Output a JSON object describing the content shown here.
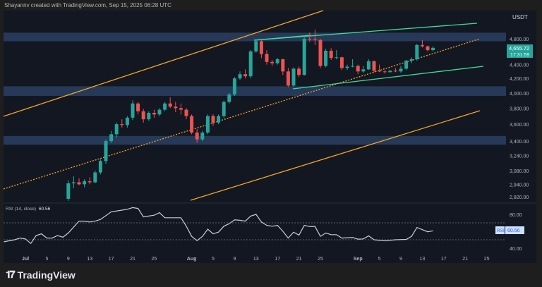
{
  "attribution": "Shayannv created with TradingView.com, Sep 15, 2025 06:28 UTC",
  "footer": {
    "brand": "TradingView",
    "logo": "TV"
  },
  "colors": {
    "up": "#26a69a",
    "down": "#ef5350",
    "zone": "#2a3f63",
    "channel": "#f5a623",
    "wedge": "#3ddc97",
    "rsi": "#c8ccd6",
    "bg": "#131722"
  },
  "chart_data": {
    "type": "candlestick",
    "currency": "USDT",
    "price_scale": "log",
    "last_price": "4,655.72",
    "countdown": "17:31:59",
    "y_ticks": [
      "4,800.00",
      "4,400.00",
      "4,200.00",
      "4,000.00",
      "3,800.00",
      "3,600.00",
      "3,400.00",
      "3,240.00",
      "3,080.00",
      "2,940.00",
      "2,820.00"
    ],
    "y_tick_values": [
      4800,
      4400,
      4200,
      4000,
      3800,
      3600,
      3400,
      3240,
      3080,
      2940,
      2820
    ],
    "zones": [
      [
        4760,
        4900
      ],
      [
        3960,
        4090
      ],
      [
        3360,
        3460
      ]
    ],
    "x_ticks": [
      {
        "label": "Jul",
        "date": "07-01"
      },
      {
        "label": "5",
        "date": "07-05"
      },
      {
        "label": "9",
        "date": "07-09"
      },
      {
        "label": "13",
        "date": "07-13"
      },
      {
        "label": "17",
        "date": "07-17"
      },
      {
        "label": "21",
        "date": "07-21"
      },
      {
        "label": "25",
        "date": "07-25"
      },
      {
        "label": "Aug",
        "date": "08-01"
      },
      {
        "label": "5",
        "date": "08-05"
      },
      {
        "label": "9",
        "date": "08-09"
      },
      {
        "label": "13",
        "date": "08-13"
      },
      {
        "label": "17",
        "date": "08-17"
      },
      {
        "label": "21",
        "date": "08-21"
      },
      {
        "label": "25",
        "date": "08-25"
      },
      {
        "label": "Sep",
        "date": "09-01"
      },
      {
        "label": "5",
        "date": "09-05"
      },
      {
        "label": "9",
        "date": "09-09"
      },
      {
        "label": "13",
        "date": "09-13"
      },
      {
        "label": "17",
        "date": "09-17"
      },
      {
        "label": "21",
        "date": "09-21"
      },
      {
        "label": "25",
        "date": "09-25"
      }
    ],
    "candles": [
      [
        "07-09",
        2800,
        2980,
        2780,
        2950
      ],
      [
        "07-10",
        2950,
        3020,
        2900,
        2960
      ],
      [
        "07-11",
        2960,
        3000,
        2930,
        2940
      ],
      [
        "07-12",
        2940,
        2990,
        2910,
        2970
      ],
      [
        "07-13",
        2970,
        3010,
        2940,
        2960
      ],
      [
        "07-14",
        2960,
        3080,
        2950,
        3060
      ],
      [
        "07-15",
        3060,
        3200,
        3040,
        3180
      ],
      [
        "07-16",
        3180,
        3420,
        3150,
        3400
      ],
      [
        "07-17",
        3400,
        3520,
        3380,
        3480
      ],
      [
        "07-18",
        3480,
        3620,
        3440,
        3600
      ],
      [
        "07-19",
        3600,
        3660,
        3560,
        3590
      ],
      [
        "07-20",
        3590,
        3700,
        3560,
        3680
      ],
      [
        "07-21",
        3680,
        3900,
        3650,
        3860
      ],
      [
        "07-22",
        3860,
        3880,
        3720,
        3760
      ],
      [
        "07-23",
        3760,
        3790,
        3620,
        3660
      ],
      [
        "07-24",
        3660,
        3760,
        3640,
        3740
      ],
      [
        "07-25",
        3740,
        3780,
        3680,
        3720
      ],
      [
        "07-26",
        3720,
        3800,
        3700,
        3780
      ],
      [
        "07-27",
        3780,
        3880,
        3760,
        3860
      ],
      [
        "07-28",
        3860,
        3940,
        3800,
        3820
      ],
      [
        "07-29",
        3820,
        3880,
        3750,
        3800
      ],
      [
        "07-30",
        3800,
        3860,
        3720,
        3780
      ],
      [
        "07-31",
        3780,
        3800,
        3660,
        3700
      ],
      [
        "08-01",
        3700,
        3720,
        3480,
        3500
      ],
      [
        "08-02",
        3500,
        3540,
        3380,
        3420
      ],
      [
        "08-03",
        3420,
        3520,
        3400,
        3500
      ],
      [
        "08-04",
        3500,
        3720,
        3480,
        3700
      ],
      [
        "08-05",
        3700,
        3720,
        3580,
        3620
      ],
      [
        "08-06",
        3620,
        3720,
        3600,
        3700
      ],
      [
        "08-07",
        3700,
        3900,
        3680,
        3880
      ],
      [
        "08-08",
        3880,
        4000,
        3860,
        3980
      ],
      [
        "08-09",
        3980,
        4220,
        3960,
        4200
      ],
      [
        "08-10",
        4200,
        4300,
        4180,
        4260
      ],
      [
        "08-11",
        4260,
        4330,
        4200,
        4230
      ],
      [
        "08-12",
        4230,
        4620,
        4200,
        4600
      ],
      [
        "08-13",
        4600,
        4780,
        4580,
        4760
      ],
      [
        "08-14",
        4760,
        4780,
        4500,
        4560
      ],
      [
        "08-15",
        4560,
        4620,
        4400,
        4440
      ],
      [
        "08-16",
        4440,
        4470,
        4380,
        4420
      ],
      [
        "08-17",
        4420,
        4500,
        4400,
        4480
      ],
      [
        "08-18",
        4480,
        4490,
        4250,
        4300
      ],
      [
        "08-19",
        4300,
        4350,
        4080,
        4100
      ],
      [
        "08-20",
        4100,
        4360,
        4080,
        4340
      ],
      [
        "08-21",
        4340,
        4370,
        4220,
        4250
      ],
      [
        "08-22",
        4250,
        4850,
        4240,
        4800
      ],
      [
        "08-23",
        4800,
        4900,
        4750,
        4790
      ],
      [
        "08-24",
        4790,
        4950,
        4700,
        4780
      ],
      [
        "08-25",
        4780,
        4800,
        4350,
        4380
      ],
      [
        "08-26",
        4380,
        4640,
        4360,
        4610
      ],
      [
        "08-27",
        4610,
        4650,
        4470,
        4500
      ],
      [
        "08-28",
        4500,
        4620,
        4480,
        4510
      ],
      [
        "08-29",
        4510,
        4520,
        4320,
        4350
      ],
      [
        "08-30",
        4350,
        4400,
        4320,
        4370
      ],
      [
        "08-31",
        4370,
        4480,
        4360,
        4380
      ],
      [
        "09-01",
        4380,
        4400,
        4260,
        4300
      ],
      [
        "09-02",
        4300,
        4380,
        4280,
        4330
      ],
      [
        "09-03",
        4330,
        4480,
        4320,
        4450
      ],
      [
        "09-04",
        4450,
        4460,
        4290,
        4310
      ],
      [
        "09-05",
        4310,
        4400,
        4290,
        4300
      ],
      [
        "09-06",
        4300,
        4320,
        4270,
        4290
      ],
      [
        "09-07",
        4290,
        4320,
        4280,
        4310
      ],
      [
        "09-08",
        4310,
        4350,
        4290,
        4300
      ],
      [
        "09-09",
        4300,
        4380,
        4280,
        4340
      ],
      [
        "09-10",
        4340,
        4470,
        4320,
        4460
      ],
      [
        "09-11",
        4460,
        4510,
        4420,
        4480
      ],
      [
        "09-12",
        4480,
        4720,
        4460,
        4700
      ],
      [
        "09-13",
        4700,
        4780,
        4660,
        4680
      ],
      [
        "09-14",
        4680,
        4690,
        4600,
        4620
      ],
      [
        "09-15",
        4620,
        4680,
        4600,
        4655.72
      ]
    ],
    "rsi": {
      "label": "RSI (14, close)",
      "value": "60.56",
      "badge": "RSI",
      "y_ticks": [
        "80.00",
        "40.00"
      ],
      "y_tick_values": [
        80,
        40
      ],
      "bands": [
        70,
        50
      ],
      "points": [
        [
          "06-27",
          47.6
        ],
        [
          "06-29",
          50
        ],
        [
          "06-30",
          52
        ],
        [
          "07-01",
          51
        ],
        [
          "07-02",
          45.6
        ],
        [
          "07-03",
          55
        ],
        [
          "07-04",
          57
        ],
        [
          "07-05",
          52
        ],
        [
          "07-06",
          52
        ],
        [
          "07-07",
          55
        ],
        [
          "07-08",
          53
        ],
        [
          "07-09",
          58
        ],
        [
          "07-11",
          72
        ],
        [
          "07-12",
          72
        ],
        [
          "07-13",
          71
        ],
        [
          "07-14",
          72
        ],
        [
          "07-15",
          74
        ],
        [
          "07-17",
          83
        ],
        [
          "07-19",
          85
        ],
        [
          "07-20",
          86
        ],
        [
          "07-21",
          88
        ],
        [
          "07-22",
          87
        ],
        [
          "07-23",
          77
        ],
        [
          "07-24",
          78
        ],
        [
          "07-25",
          79
        ],
        [
          "07-26",
          82
        ],
        [
          "07-27",
          76
        ],
        [
          "07-30",
          76
        ],
        [
          "07-31",
          66
        ],
        [
          "08-01",
          54
        ],
        [
          "08-02",
          49
        ],
        [
          "08-03",
          54
        ],
        [
          "08-04",
          62.5
        ],
        [
          "08-05",
          57
        ],
        [
          "08-06",
          59
        ],
        [
          "08-07",
          66
        ],
        [
          "08-08",
          69
        ],
        [
          "08-09",
          73.5
        ],
        [
          "08-10",
          73
        ],
        [
          "08-11",
          72
        ],
        [
          "08-12",
          78
        ],
        [
          "08-13",
          80
        ],
        [
          "08-14",
          71
        ],
        [
          "08-15",
          67
        ],
        [
          "08-16",
          66
        ],
        [
          "08-17",
          67
        ],
        [
          "08-18",
          60
        ],
        [
          "08-19",
          52
        ],
        [
          "08-20",
          59
        ],
        [
          "08-21",
          55.5
        ],
        [
          "08-22",
          67
        ],
        [
          "08-23",
          65.6
        ],
        [
          "08-24",
          65.6
        ],
        [
          "08-25",
          54
        ],
        [
          "08-26",
          58
        ],
        [
          "08-27",
          56
        ],
        [
          "08-28",
          56
        ],
        [
          "08-29",
          52
        ],
        [
          "08-31",
          52.7
        ],
        [
          "09-01",
          50.7
        ],
        [
          "09-02",
          51
        ],
        [
          "09-03",
          54.6
        ],
        [
          "09-04",
          50
        ],
        [
          "09-06",
          48.7
        ],
        [
          "09-08",
          50
        ],
        [
          "09-10",
          50.4
        ],
        [
          "09-11",
          54
        ],
        [
          "09-12",
          64.5
        ],
        [
          "09-14",
          59.4
        ],
        [
          "09-15",
          60.56
        ]
      ]
    }
  }
}
